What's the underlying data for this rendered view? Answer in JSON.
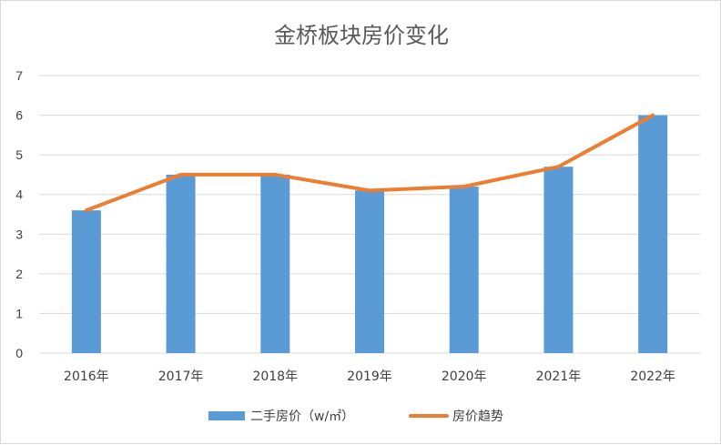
{
  "chart_data": {
    "type": "bar",
    "title": "金桥板块房价变化",
    "categories": [
      "2016年",
      "2017年",
      "2018年",
      "2019年",
      "2020年",
      "2021年",
      "2022年"
    ],
    "series": [
      {
        "name": "二手房价（w/㎡）",
        "kind": "bar",
        "color": "#5b9bd5",
        "values": [
          3.6,
          4.5,
          4.5,
          4.1,
          4.2,
          4.7,
          6.0
        ]
      },
      {
        "name": "房价趋势",
        "kind": "line",
        "color": "#ed7d31",
        "values": [
          3.6,
          4.5,
          4.5,
          4.1,
          4.2,
          4.7,
          6.0
        ]
      }
    ],
    "ylim": [
      0,
      7
    ],
    "yticks": [
      0,
      1,
      2,
      3,
      4,
      5,
      6,
      7
    ],
    "grid": true,
    "legend_position": "bottom"
  }
}
